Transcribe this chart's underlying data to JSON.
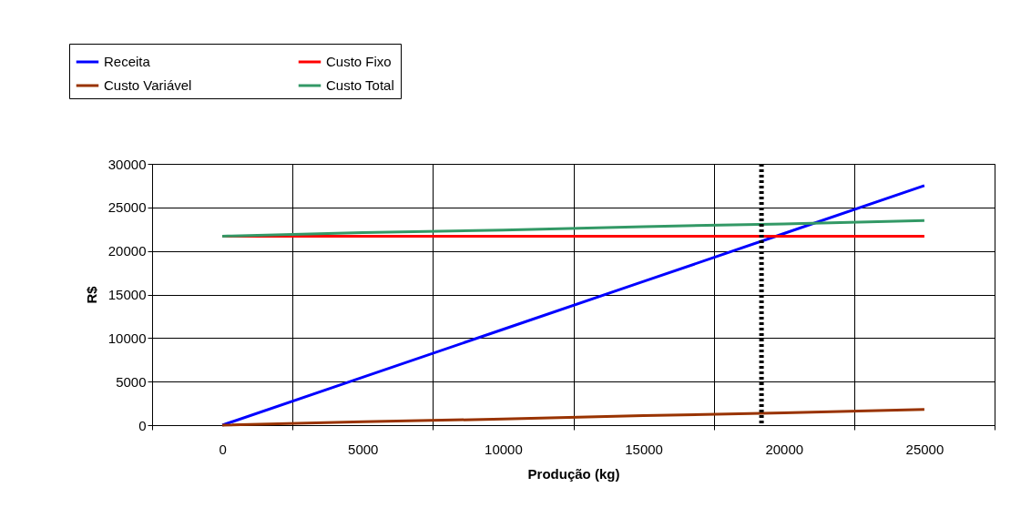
{
  "chart_data": {
    "type": "line",
    "xlabel": "Produção (kg)",
    "ylabel": "R$",
    "x": [
      0,
      5000,
      10000,
      15000,
      20000,
      25000
    ],
    "xlim": [
      -2500,
      27500
    ],
    "xticks": [
      {
        "value": -2500,
        "label": null
      },
      0,
      {
        "value": 2500,
        "label": null
      },
      5000,
      {
        "value": 7500,
        "label": null
      },
      10000,
      {
        "value": 12500,
        "label": null
      },
      15000,
      {
        "value": 17500,
        "label": null
      },
      20000,
      {
        "value": 22500,
        "label": null
      },
      25000,
      {
        "value": 27500,
        "label": null
      }
    ],
    "ylim": [
      0,
      30000
    ],
    "yticks": [
      0,
      5000,
      10000,
      15000,
      20000,
      25000,
      30000
    ],
    "series": [
      {
        "name": "Receita",
        "color": "#0000ff",
        "values": [
          0,
          5500,
          11000,
          16500,
          22000,
          27500
        ]
      },
      {
        "name": "Custo Fixo",
        "color": "#ff0000",
        "values": [
          21700,
          21700,
          21700,
          21700,
          21700,
          21700
        ]
      },
      {
        "name": "Custo Variável",
        "color": "#993300",
        "values": [
          0,
          400,
          700,
          1100,
          1400,
          1800
        ]
      },
      {
        "name": "Custo Total",
        "color": "#339966",
        "values": [
          21700,
          22100,
          22400,
          22800,
          23100,
          23500
        ]
      }
    ],
    "ref_lines": [
      {
        "axis": "x",
        "value": 19200,
        "label": null,
        "color": "#000000",
        "line_style": "dotted"
      }
    ],
    "grid": true,
    "legend": "top left",
    "marker": "none",
    "line_style": "solid"
  }
}
